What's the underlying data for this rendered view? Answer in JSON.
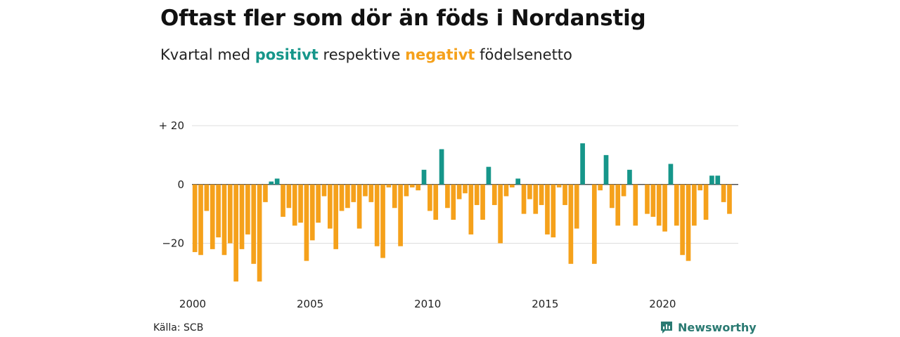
{
  "header": {
    "title": "Oftast fler som dör än föds i Nordanstig",
    "subtitle_before": "Kvartal med",
    "subtitle_positive": "positivt",
    "subtitle_middle": "respektive",
    "subtitle_negative": "negativt",
    "subtitle_after": "födelsenetto"
  },
  "footer": {
    "source": "Källa: SCB",
    "brand": "Newsworthy"
  },
  "colors": {
    "positive": "#16968a",
    "negative": "#f5a11b",
    "grid": "#dddddd",
    "brand": "#2a7a72"
  },
  "icons": {
    "brand_logo": "newsworthy-logo-icon"
  },
  "chart_data": {
    "type": "bar",
    "title": "Oftast fler som dör än föds i Nordanstig",
    "subtitle": "Kvartal med positivt respektive negativt födelsenetto",
    "x_start": 2000,
    "x_step": 0.25,
    "xlim": [
      2000,
      2023.25
    ],
    "ylim": [
      -33,
      20
    ],
    "grid": true,
    "y_ticks": [
      {
        "value": 20,
        "label": "+ 20"
      },
      {
        "value": 0,
        "label": "0"
      },
      {
        "value": -20,
        "label": "−20"
      }
    ],
    "x_ticks": [
      {
        "value": 2000,
        "label": "2000"
      },
      {
        "value": 2005,
        "label": "2005"
      },
      {
        "value": 2010,
        "label": "2010"
      },
      {
        "value": 2015,
        "label": "2015"
      },
      {
        "value": 2020,
        "label": "2020"
      }
    ],
    "values": [
      -23,
      -24,
      -9,
      -22,
      -18,
      -24,
      -20,
      -33,
      -22,
      -17,
      -27,
      -33,
      -6,
      1,
      2,
      -11,
      -8,
      -14,
      -13,
      -26,
      -19,
      -13,
      -4,
      -15,
      -22,
      -9,
      -8,
      -6,
      -15,
      -4,
      -6,
      -21,
      -25,
      -1,
      -8,
      -21,
      -4,
      -1,
      -2,
      5,
      -9,
      -12,
      12,
      -8,
      -12,
      -5,
      -3,
      -17,
      -7,
      -12,
      6,
      -7,
      -20,
      -4,
      -1,
      2,
      -10,
      -5,
      -10,
      -7,
      -17,
      -18,
      -1,
      -7,
      -27,
      -15,
      14,
      0,
      -27,
      -2,
      10,
      -8,
      -14,
      -4,
      5,
      -14,
      0,
      -10,
      -11,
      -14,
      -16,
      7,
      -14,
      -24,
      -26,
      -14,
      -2,
      -12,
      3,
      3,
      -6,
      -10
    ]
  }
}
